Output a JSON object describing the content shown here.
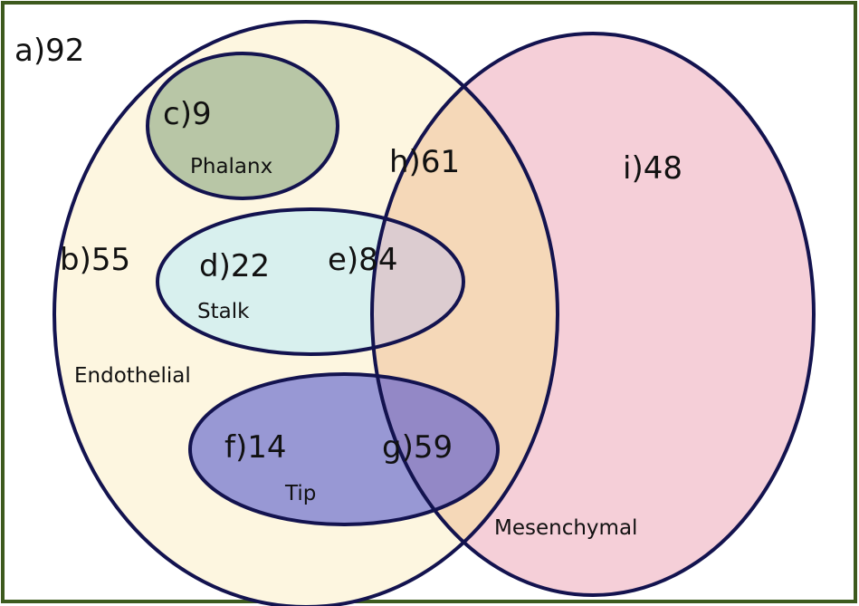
{
  "regions": {
    "a": "a)92",
    "b": "b)55",
    "c": "c)9",
    "d": "d)22",
    "e": "e)84",
    "f": "f)14",
    "g": "g)59",
    "h": "h)61",
    "i": "i)48"
  },
  "sets": {
    "phalanx": "Phalanx",
    "stalk": "Stalk",
    "endothelial": "Endothelial",
    "tip": "Tip",
    "mesenchymal": "Mesenchymal"
  },
  "colors": {
    "frame_border": "#3d5a1e",
    "outline": "#13134f",
    "endothelial_fill": "#fdf6e0",
    "mesenchymal_fill": "#f5cfd8",
    "overlap_fill": "#f5d8b8",
    "phalanx_fill": "#b8c6a6",
    "stalk_fill": "#d8f0ee",
    "stalk_overlap_fill": "#dcccd0",
    "tip_fill": "#9898d4",
    "tip_overlap_fill": "#9388c6",
    "phalanx_text": "#3a6a1a",
    "stalk_text": "#2a5e5a",
    "endothelial_text": "#55552a",
    "tip_text": "#2a2a9a",
    "mesenchymal_text": "#8a2a2a"
  }
}
